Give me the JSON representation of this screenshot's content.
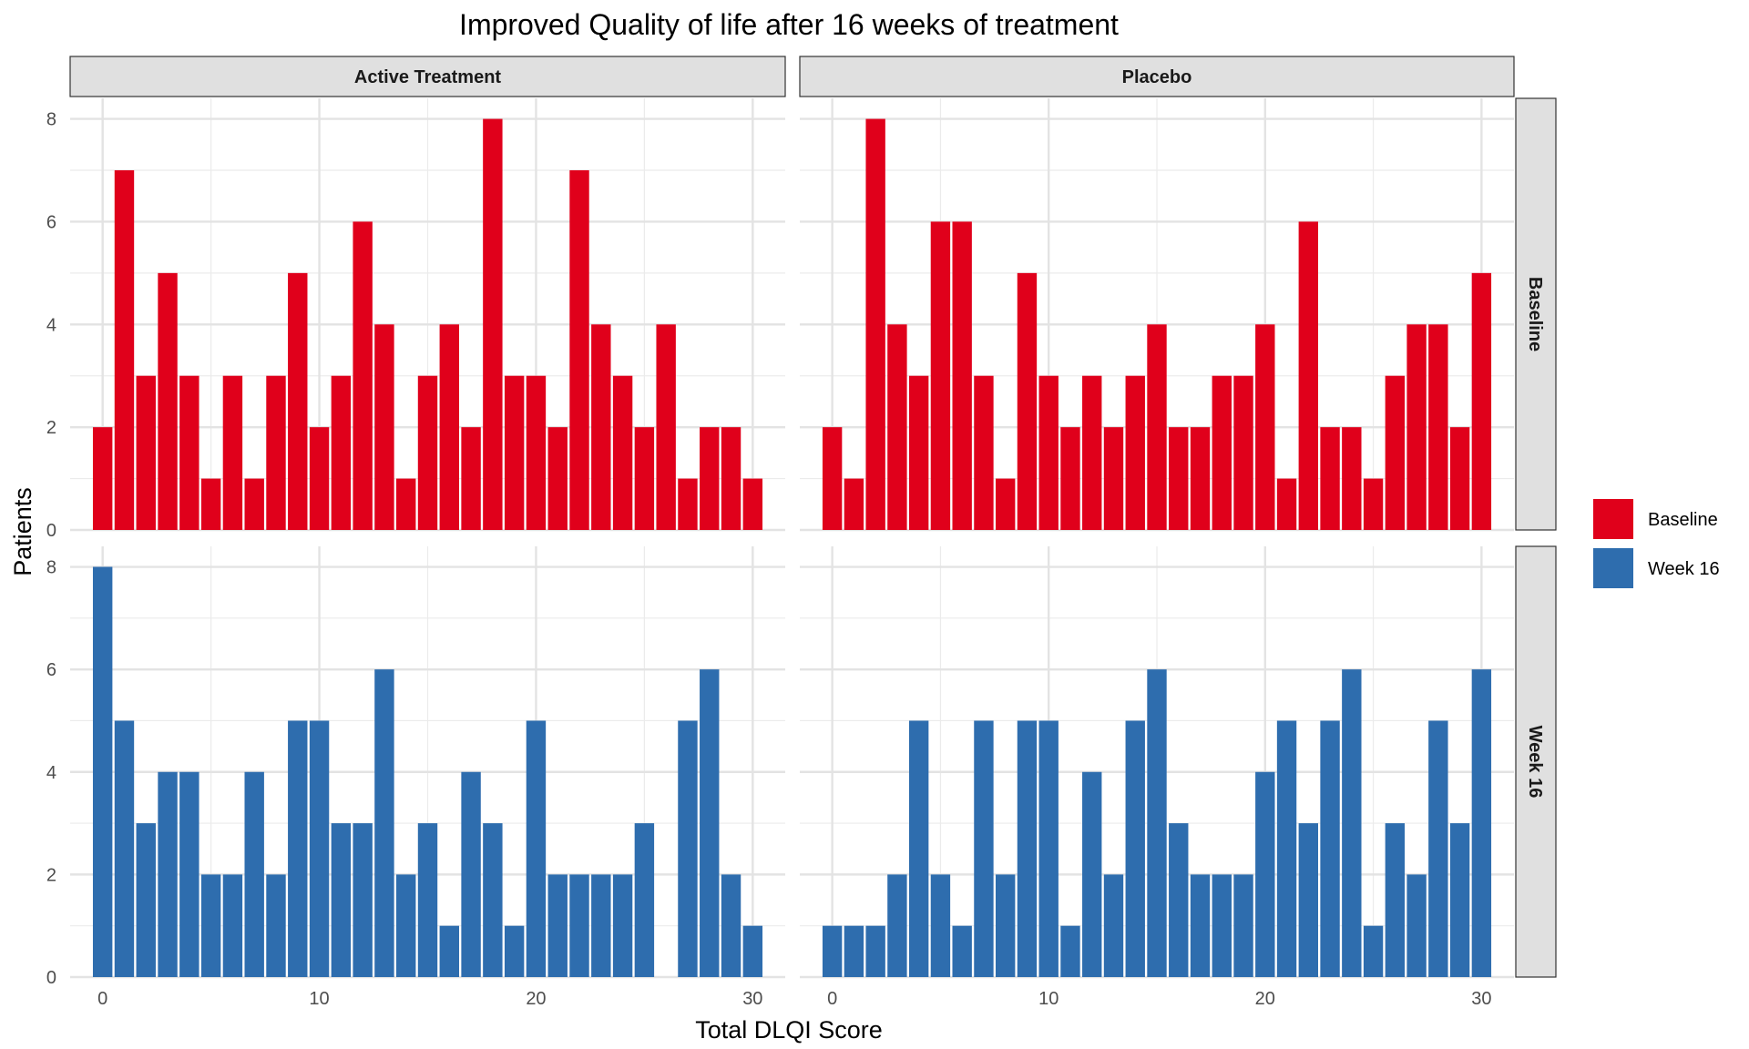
{
  "chart_data": {
    "type": "bar",
    "title": "Improved Quality of life after 16 weeks of treatment",
    "xlabel": "Total DLQI Score",
    "ylabel": "Patients",
    "x": [
      0,
      1,
      2,
      3,
      4,
      5,
      6,
      7,
      8,
      9,
      10,
      11,
      12,
      13,
      14,
      15,
      16,
      17,
      18,
      19,
      20,
      21,
      22,
      23,
      24,
      25,
      26,
      27,
      28,
      29,
      30
    ],
    "xlim": [
      -1.5,
      31.5
    ],
    "ylim": [
      0,
      8.4
    ],
    "x_ticks": [
      0,
      10,
      20,
      30
    ],
    "y_ticks": [
      0,
      2,
      4,
      6,
      8
    ],
    "grid": true,
    "legend_position": "right",
    "column_facets": [
      "Active Treatment",
      "Placebo"
    ],
    "row_facets": [
      "Baseline",
      "Week 16"
    ],
    "legend": [
      {
        "name": "Baseline",
        "color": "#e0001b"
      },
      {
        "name": "Week 16",
        "color": "#2e6dae"
      }
    ],
    "panels": [
      {
        "treatment": "Active Treatment",
        "timepoint": "Baseline",
        "values": [
          2,
          7,
          3,
          5,
          3,
          1,
          3,
          1,
          3,
          5,
          2,
          3,
          6,
          4,
          1,
          3,
          4,
          2,
          8,
          3,
          3,
          2,
          7,
          4,
          3,
          2,
          4,
          1,
          2,
          2,
          1
        ]
      },
      {
        "treatment": "Placebo",
        "timepoint": "Baseline",
        "values": [
          2,
          1,
          8,
          4,
          3,
          6,
          6,
          3,
          1,
          5,
          3,
          2,
          3,
          2,
          3,
          4,
          2,
          2,
          3,
          3,
          4,
          1,
          6,
          2,
          2,
          1,
          3,
          4,
          4,
          2,
          5
        ]
      },
      {
        "treatment": "Active Treatment",
        "timepoint": "Week 16",
        "values": [
          8,
          5,
          3,
          4,
          4,
          2,
          2,
          4,
          2,
          5,
          5,
          3,
          3,
          6,
          2,
          3,
          1,
          4,
          3,
          1,
          5,
          2,
          2,
          2,
          2,
          3,
          0,
          5,
          6,
          2,
          1
        ]
      },
      {
        "treatment": "Placebo",
        "timepoint": "Week 16",
        "values": [
          1,
          1,
          1,
          2,
          5,
          2,
          1,
          5,
          2,
          5,
          5,
          1,
          4,
          2,
          5,
          6,
          3,
          2,
          2,
          2,
          4,
          5,
          3,
          5,
          6,
          1,
          3,
          2,
          5,
          3,
          6
        ]
      }
    ]
  }
}
